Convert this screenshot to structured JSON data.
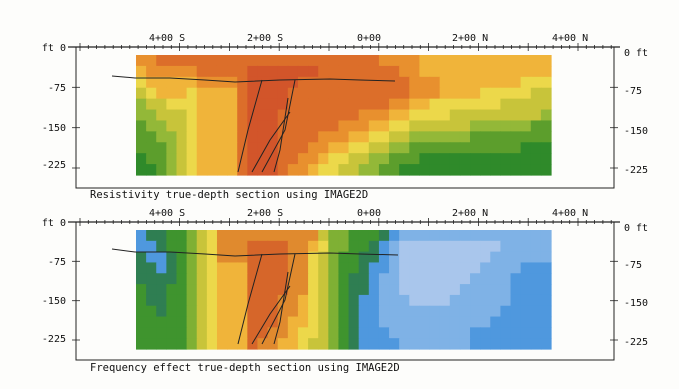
{
  "panels": [
    {
      "id": "resistivity",
      "caption": "Resistivity true-depth section using IMAGE2D",
      "x_ticks": [
        "4+00 S",
        "2+00 S",
        "0+00",
        "2+00 N",
        "4+00 N"
      ],
      "left_depth_labels": [
        "ft 0",
        "-75",
        "-150",
        "-225"
      ],
      "right_depth_labels": [
        "0 ft",
        "-75",
        "-150",
        "-225"
      ],
      "palette": [
        "#2f8a2a",
        "#5c9e2c",
        "#93b838",
        "#c8c43a",
        "#ecd84a",
        "#f0b43a",
        "#e8902e",
        "#dc6e2a",
        "#d2552a"
      ],
      "palette_note": "green = low, red = high (higher class index = higher resistivity)",
      "grid": [
        [
          6,
          6,
          7,
          7,
          7,
          7,
          7,
          7,
          7,
          7,
          7,
          7,
          7,
          7,
          7,
          7,
          7,
          7,
          7,
          7,
          7,
          7,
          7,
          7,
          6,
          6,
          6,
          6,
          5,
          5,
          5,
          5,
          5,
          5,
          5,
          5,
          5,
          5,
          5,
          5,
          5
        ],
        [
          5,
          6,
          6,
          6,
          6,
          6,
          7,
          7,
          7,
          7,
          7,
          8,
          8,
          8,
          8,
          8,
          8,
          8,
          7,
          7,
          7,
          7,
          7,
          7,
          7,
          7,
          6,
          6,
          5,
          5,
          5,
          5,
          5,
          5,
          5,
          5,
          5,
          5,
          5,
          5,
          5
        ],
        [
          4,
          5,
          5,
          5,
          5,
          5,
          6,
          6,
          6,
          6,
          7,
          8,
          8,
          8,
          8,
          8,
          7,
          7,
          7,
          7,
          7,
          7,
          7,
          7,
          7,
          7,
          7,
          6,
          6,
          6,
          5,
          5,
          5,
          5,
          5,
          5,
          5,
          5,
          4,
          4,
          4
        ],
        [
          3,
          4,
          5,
          5,
          5,
          4,
          5,
          5,
          5,
          5,
          7,
          8,
          8,
          8,
          8,
          7,
          7,
          7,
          7,
          7,
          7,
          7,
          7,
          7,
          7,
          7,
          7,
          6,
          6,
          6,
          5,
          5,
          5,
          5,
          4,
          4,
          4,
          4,
          4,
          3,
          3
        ],
        [
          2,
          3,
          3,
          4,
          4,
          4,
          5,
          5,
          5,
          5,
          7,
          8,
          8,
          8,
          8,
          7,
          7,
          7,
          7,
          7,
          7,
          7,
          7,
          7,
          7,
          6,
          6,
          5,
          5,
          4,
          4,
          4,
          4,
          4,
          4,
          4,
          3,
          3,
          3,
          3,
          3
        ],
        [
          2,
          2,
          3,
          3,
          3,
          4,
          5,
          5,
          5,
          5,
          7,
          8,
          8,
          8,
          7,
          7,
          7,
          7,
          7,
          7,
          7,
          7,
          6,
          6,
          6,
          5,
          5,
          4,
          4,
          4,
          4,
          3,
          3,
          3,
          3,
          3,
          3,
          3,
          3,
          3,
          2
        ],
        [
          1,
          2,
          2,
          3,
          3,
          4,
          5,
          5,
          5,
          5,
          7,
          8,
          8,
          8,
          7,
          7,
          7,
          7,
          7,
          7,
          6,
          6,
          6,
          5,
          5,
          4,
          4,
          3,
          3,
          3,
          3,
          3,
          3,
          2,
          2,
          2,
          2,
          2,
          2,
          1,
          1
        ],
        [
          1,
          1,
          2,
          2,
          3,
          4,
          5,
          5,
          5,
          5,
          7,
          8,
          8,
          8,
          7,
          7,
          7,
          7,
          6,
          6,
          6,
          5,
          5,
          4,
          4,
          3,
          3,
          2,
          2,
          2,
          2,
          2,
          2,
          1,
          1,
          1,
          1,
          1,
          1,
          1,
          1
        ],
        [
          1,
          1,
          1,
          2,
          3,
          4,
          5,
          5,
          5,
          5,
          7,
          8,
          8,
          8,
          7,
          7,
          7,
          6,
          6,
          5,
          5,
          4,
          4,
          3,
          3,
          2,
          2,
          1,
          1,
          1,
          1,
          1,
          1,
          1,
          1,
          1,
          1,
          1,
          0,
          0,
          0
        ],
        [
          0,
          1,
          1,
          2,
          3,
          4,
          5,
          5,
          5,
          5,
          7,
          8,
          8,
          8,
          7,
          7,
          6,
          6,
          5,
          4,
          4,
          3,
          3,
          2,
          2,
          1,
          1,
          1,
          0,
          0,
          0,
          0,
          0,
          0,
          0,
          0,
          0,
          0,
          0,
          0,
          0
        ],
        [
          0,
          0,
          1,
          2,
          3,
          4,
          5,
          5,
          5,
          5,
          7,
          8,
          8,
          8,
          7,
          6,
          6,
          5,
          4,
          4,
          3,
          3,
          2,
          2,
          1,
          1,
          0,
          0,
          0,
          0,
          0,
          0,
          0,
          0,
          0,
          0,
          0,
          0,
          0,
          0,
          0
        ]
      ]
    },
    {
      "id": "frequency",
      "caption": "Frequency effect true-depth section using IMAGE2D",
      "x_ticks": [
        "4+00 S",
        "2+00 S",
        "0+00",
        "2+00 N",
        "4+00 N"
      ],
      "left_depth_labels": [
        "ft 0",
        "-75",
        "-150",
        "-225"
      ],
      "right_depth_labels": [
        "0 ft",
        "-75",
        "-150",
        "-225"
      ],
      "palette": [
        "#a9c6ec",
        "#7fb2e6",
        "#4f98de",
        "#2f7e52",
        "#3f942e",
        "#7fb034",
        "#c8c43a",
        "#ecd84a",
        "#f0b43a",
        "#e08a2e",
        "#d6662a"
      ],
      "palette_note": "blue = low, red = high (higher class index = higher frequency effect)",
      "grid": [
        [
          2,
          3,
          3,
          4,
          4,
          5,
          6,
          7,
          9,
          9,
          9,
          9,
          9,
          9,
          9,
          9,
          9,
          9,
          6,
          5,
          5,
          4,
          4,
          4,
          3,
          2,
          1,
          1,
          1,
          1,
          1,
          1,
          1,
          1,
          1,
          1,
          1,
          1,
          1,
          1,
          1
        ],
        [
          2,
          2,
          3,
          4,
          4,
          5,
          6,
          7,
          9,
          9,
          9,
          10,
          10,
          10,
          10,
          9,
          9,
          8,
          7,
          5,
          5,
          4,
          4,
          3,
          2,
          1,
          0,
          0,
          0,
          0,
          0,
          0,
          0,
          0,
          0,
          0,
          1,
          1,
          1,
          1,
          1
        ],
        [
          3,
          2,
          2,
          3,
          4,
          5,
          6,
          7,
          9,
          9,
          9,
          10,
          10,
          10,
          10,
          9,
          9,
          7,
          6,
          5,
          4,
          4,
          3,
          3,
          2,
          1,
          0,
          0,
          0,
          0,
          0,
          0,
          0,
          0,
          0,
          1,
          1,
          1,
          1,
          1,
          1
        ],
        [
          3,
          3,
          2,
          3,
          4,
          5,
          6,
          7,
          8,
          8,
          8,
          10,
          10,
          10,
          10,
          9,
          9,
          7,
          6,
          5,
          4,
          4,
          3,
          2,
          2,
          1,
          0,
          0,
          0,
          0,
          0,
          0,
          0,
          0,
          1,
          1,
          1,
          1,
          2,
          2,
          2
        ],
        [
          3,
          3,
          3,
          3,
          4,
          5,
          6,
          7,
          8,
          8,
          8,
          10,
          10,
          10,
          10,
          9,
          9,
          7,
          6,
          5,
          4,
          3,
          3,
          2,
          1,
          1,
          0,
          0,
          0,
          0,
          0,
          0,
          0,
          1,
          1,
          1,
          1,
          2,
          2,
          2,
          2
        ],
        [
          4,
          3,
          3,
          4,
          4,
          5,
          6,
          7,
          8,
          8,
          8,
          10,
          10,
          10,
          10,
          9,
          9,
          7,
          6,
          5,
          4,
          3,
          3,
          2,
          1,
          1,
          0,
          0,
          0,
          0,
          0,
          0,
          1,
          1,
          1,
          1,
          1,
          2,
          2,
          2,
          2
        ],
        [
          4,
          3,
          3,
          4,
          4,
          5,
          6,
          7,
          8,
          8,
          8,
          10,
          10,
          10,
          9,
          9,
          8,
          7,
          6,
          5,
          4,
          3,
          2,
          2,
          1,
          1,
          1,
          0,
          0,
          0,
          0,
          1,
          1,
          1,
          1,
          1,
          1,
          2,
          2,
          2,
          2
        ],
        [
          4,
          4,
          3,
          4,
          4,
          5,
          6,
          7,
          8,
          8,
          8,
          10,
          10,
          10,
          9,
          9,
          8,
          7,
          6,
          5,
          4,
          3,
          2,
          2,
          1,
          1,
          1,
          1,
          1,
          1,
          1,
          1,
          1,
          1,
          1,
          1,
          2,
          2,
          2,
          2,
          2
        ],
        [
          4,
          4,
          4,
          4,
          4,
          5,
          6,
          7,
          8,
          8,
          8,
          10,
          10,
          10,
          9,
          8,
          8,
          7,
          6,
          5,
          4,
          3,
          2,
          2,
          1,
          1,
          1,
          1,
          1,
          1,
          1,
          1,
          1,
          1,
          1,
          2,
          2,
          2,
          2,
          2,
          2
        ],
        [
          4,
          4,
          4,
          4,
          4,
          5,
          6,
          7,
          8,
          8,
          8,
          10,
          10,
          9,
          9,
          8,
          7,
          7,
          6,
          5,
          4,
          3,
          2,
          2,
          2,
          1,
          1,
          1,
          1,
          1,
          1,
          1,
          1,
          2,
          2,
          2,
          2,
          2,
          2,
          2,
          2
        ],
        [
          4,
          4,
          4,
          4,
          4,
          5,
          6,
          7,
          8,
          8,
          8,
          10,
          9,
          9,
          8,
          8,
          7,
          6,
          6,
          5,
          4,
          3,
          2,
          2,
          2,
          2,
          1,
          1,
          1,
          1,
          1,
          1,
          1,
          2,
          2,
          2,
          2,
          2,
          2,
          2,
          2
        ]
      ]
    }
  ]
}
